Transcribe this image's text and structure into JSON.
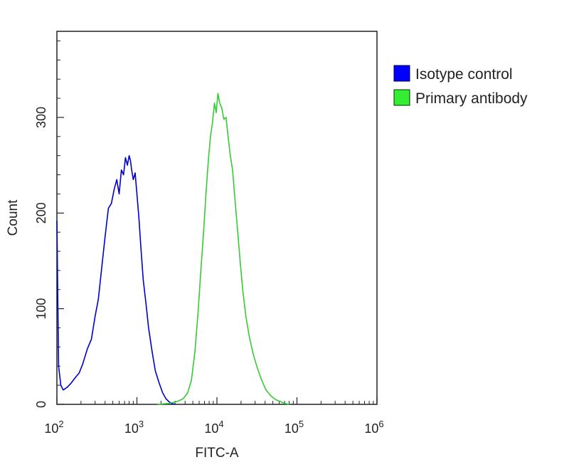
{
  "chart_data": {
    "type": "line",
    "title": "",
    "xlabel": "FITC-A",
    "ylabel": "Count",
    "x_scale": "log",
    "xlim": [
      100,
      1000000
    ],
    "ylim": [
      0,
      390
    ],
    "x_ticks": [
      {
        "value": 100,
        "base": "10",
        "exp": "2"
      },
      {
        "value": 1000,
        "base": "10",
        "exp": "3"
      },
      {
        "value": 10000,
        "base": "10",
        "exp": "4"
      },
      {
        "value": 100000,
        "base": "10",
        "exp": "5"
      },
      {
        "value": 1000000,
        "base": "10",
        "exp": "6"
      }
    ],
    "y_ticks": [
      0,
      100,
      200,
      300
    ],
    "grid": false,
    "legend_position": "right",
    "series": [
      {
        "name": "Isotype control",
        "color": "#0000cc",
        "x": [
          100,
          105,
          112,
          120,
          135,
          150,
          170,
          190,
          210,
          240,
          270,
          300,
          330,
          360,
          400,
          440,
          480,
          520,
          560,
          600,
          640,
          680,
          720,
          760,
          800,
          830,
          860,
          900,
          950,
          1000,
          1060,
          1120,
          1200,
          1300,
          1400,
          1550,
          1700,
          1900,
          2100,
          2300,
          2500,
          2700,
          3000
        ],
        "y": [
          192,
          40,
          20,
          15,
          18,
          22,
          28,
          33,
          42,
          58,
          68,
          92,
          110,
          140,
          175,
          205,
          210,
          225,
          235,
          220,
          245,
          240,
          258,
          250,
          260,
          255,
          245,
          235,
          242,
          220,
          195,
          165,
          130,
          105,
          80,
          55,
          35,
          22,
          12,
          6,
          3,
          1,
          0
        ]
      },
      {
        "name": "Primary antibody",
        "color": "#33cc33",
        "x": [
          1800,
          2500,
          3200,
          3800,
          4300,
          4800,
          5300,
          5800,
          6300,
          6800,
          7300,
          7800,
          8300,
          8800,
          9300,
          9800,
          10300,
          10800,
          11500,
          12200,
          13000,
          13800,
          14700,
          15700,
          16800,
          18000,
          19500,
          21000,
          23000,
          25500,
          28500,
          32000,
          36000,
          41000,
          47000,
          54000,
          62000,
          70000,
          80000
        ],
        "y": [
          0,
          1,
          3,
          6,
          12,
          25,
          55,
          95,
          140,
          180,
          220,
          255,
          280,
          295,
          315,
          305,
          325,
          315,
          310,
          298,
          300,
          280,
          260,
          245,
          215,
          185,
          150,
          120,
          92,
          70,
          52,
          38,
          26,
          15,
          9,
          5,
          3,
          1,
          0
        ]
      }
    ]
  }
}
